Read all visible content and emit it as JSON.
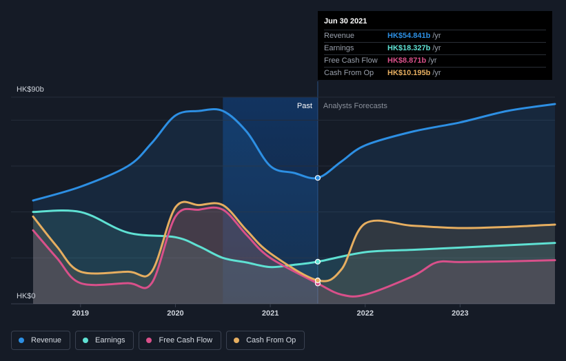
{
  "chart_data": {
    "type": "area",
    "y_axis": {
      "max_label": "HK$90b",
      "min_label": "HK$0",
      "ylim": [
        0,
        90
      ],
      "unit": "HK$b"
    },
    "x_axis": {
      "ticks": [
        "2019",
        "2020",
        "2021",
        "2022",
        "2023"
      ],
      "xlim": [
        2018.5,
        2024.0
      ]
    },
    "past_label": "Past",
    "forecast_label": "Analysts Forecasts",
    "past_end": 2021.5,
    "highlight_start": 2020.5,
    "series": [
      {
        "name": "Revenue",
        "color": "#2d8fe3",
        "points": [
          [
            2018.5,
            45
          ],
          [
            2019.0,
            51
          ],
          [
            2019.5,
            60
          ],
          [
            2019.75,
            70
          ],
          [
            2020.0,
            82
          ],
          [
            2020.25,
            84
          ],
          [
            2020.5,
            84
          ],
          [
            2020.75,
            75
          ],
          [
            2021.0,
            60
          ],
          [
            2021.25,
            57
          ],
          [
            2021.5,
            54.841
          ],
          [
            2021.75,
            62
          ],
          [
            2022.0,
            69
          ],
          [
            2022.5,
            75
          ],
          [
            2023.0,
            79
          ],
          [
            2023.5,
            84
          ],
          [
            2024.0,
            87
          ]
        ]
      },
      {
        "name": "Earnings",
        "color": "#5fe1d3",
        "points": [
          [
            2018.5,
            40
          ],
          [
            2019.0,
            40
          ],
          [
            2019.5,
            31
          ],
          [
            2020.0,
            29
          ],
          [
            2020.25,
            25
          ],
          [
            2020.5,
            20
          ],
          [
            2020.75,
            18
          ],
          [
            2021.0,
            16
          ],
          [
            2021.25,
            17
          ],
          [
            2021.5,
            18.327
          ],
          [
            2022.0,
            22.5
          ],
          [
            2022.5,
            23.5
          ],
          [
            2023.0,
            24.5
          ],
          [
            2023.5,
            25.5
          ],
          [
            2024.0,
            26.5
          ]
        ]
      },
      {
        "name": "Free Cash Flow",
        "color": "#d9508a",
        "points": [
          [
            2018.5,
            32
          ],
          [
            2018.75,
            20
          ],
          [
            2019.0,
            9
          ],
          [
            2019.5,
            9
          ],
          [
            2019.75,
            9
          ],
          [
            2020.0,
            38
          ],
          [
            2020.25,
            41
          ],
          [
            2020.5,
            41
          ],
          [
            2020.75,
            30
          ],
          [
            2021.0,
            20
          ],
          [
            2021.5,
            8.871
          ],
          [
            2021.75,
            4
          ],
          [
            2022.0,
            4
          ],
          [
            2022.5,
            12
          ],
          [
            2022.75,
            18
          ],
          [
            2023.0,
            18.2
          ],
          [
            2023.5,
            18.5
          ],
          [
            2024.0,
            19
          ]
        ]
      },
      {
        "name": "Cash From Op",
        "color": "#e6ae60",
        "points": [
          [
            2018.5,
            38
          ],
          [
            2018.75,
            25
          ],
          [
            2019.0,
            14
          ],
          [
            2019.5,
            14
          ],
          [
            2019.75,
            14
          ],
          [
            2020.0,
            42
          ],
          [
            2020.25,
            43
          ],
          [
            2020.5,
            43
          ],
          [
            2020.75,
            32
          ],
          [
            2021.0,
            22
          ],
          [
            2021.5,
            10.195
          ],
          [
            2021.75,
            15
          ],
          [
            2022.0,
            35
          ],
          [
            2022.5,
            34
          ],
          [
            2023.0,
            33
          ],
          [
            2023.5,
            33.5
          ],
          [
            2024.0,
            34.5
          ]
        ]
      }
    ]
  },
  "tooltip": {
    "date": "Jun 30 2021",
    "rows": [
      {
        "label": "Revenue",
        "value": "HK$54.841b",
        "unit": "/yr",
        "color": "#2d8fe3"
      },
      {
        "label": "Earnings",
        "value": "HK$18.327b",
        "unit": "/yr",
        "color": "#5fe1d3"
      },
      {
        "label": "Free Cash Flow",
        "value": "HK$8.871b",
        "unit": "/yr",
        "color": "#d9508a"
      },
      {
        "label": "Cash From Op",
        "value": "HK$10.195b",
        "unit": "/yr",
        "color": "#e6ae60"
      }
    ]
  },
  "legend": [
    {
      "label": "Revenue",
      "color": "#2d8fe3"
    },
    {
      "label": "Earnings",
      "color": "#5fe1d3"
    },
    {
      "label": "Free Cash Flow",
      "color": "#d9508a"
    },
    {
      "label": "Cash From Op",
      "color": "#e6ae60"
    }
  ]
}
